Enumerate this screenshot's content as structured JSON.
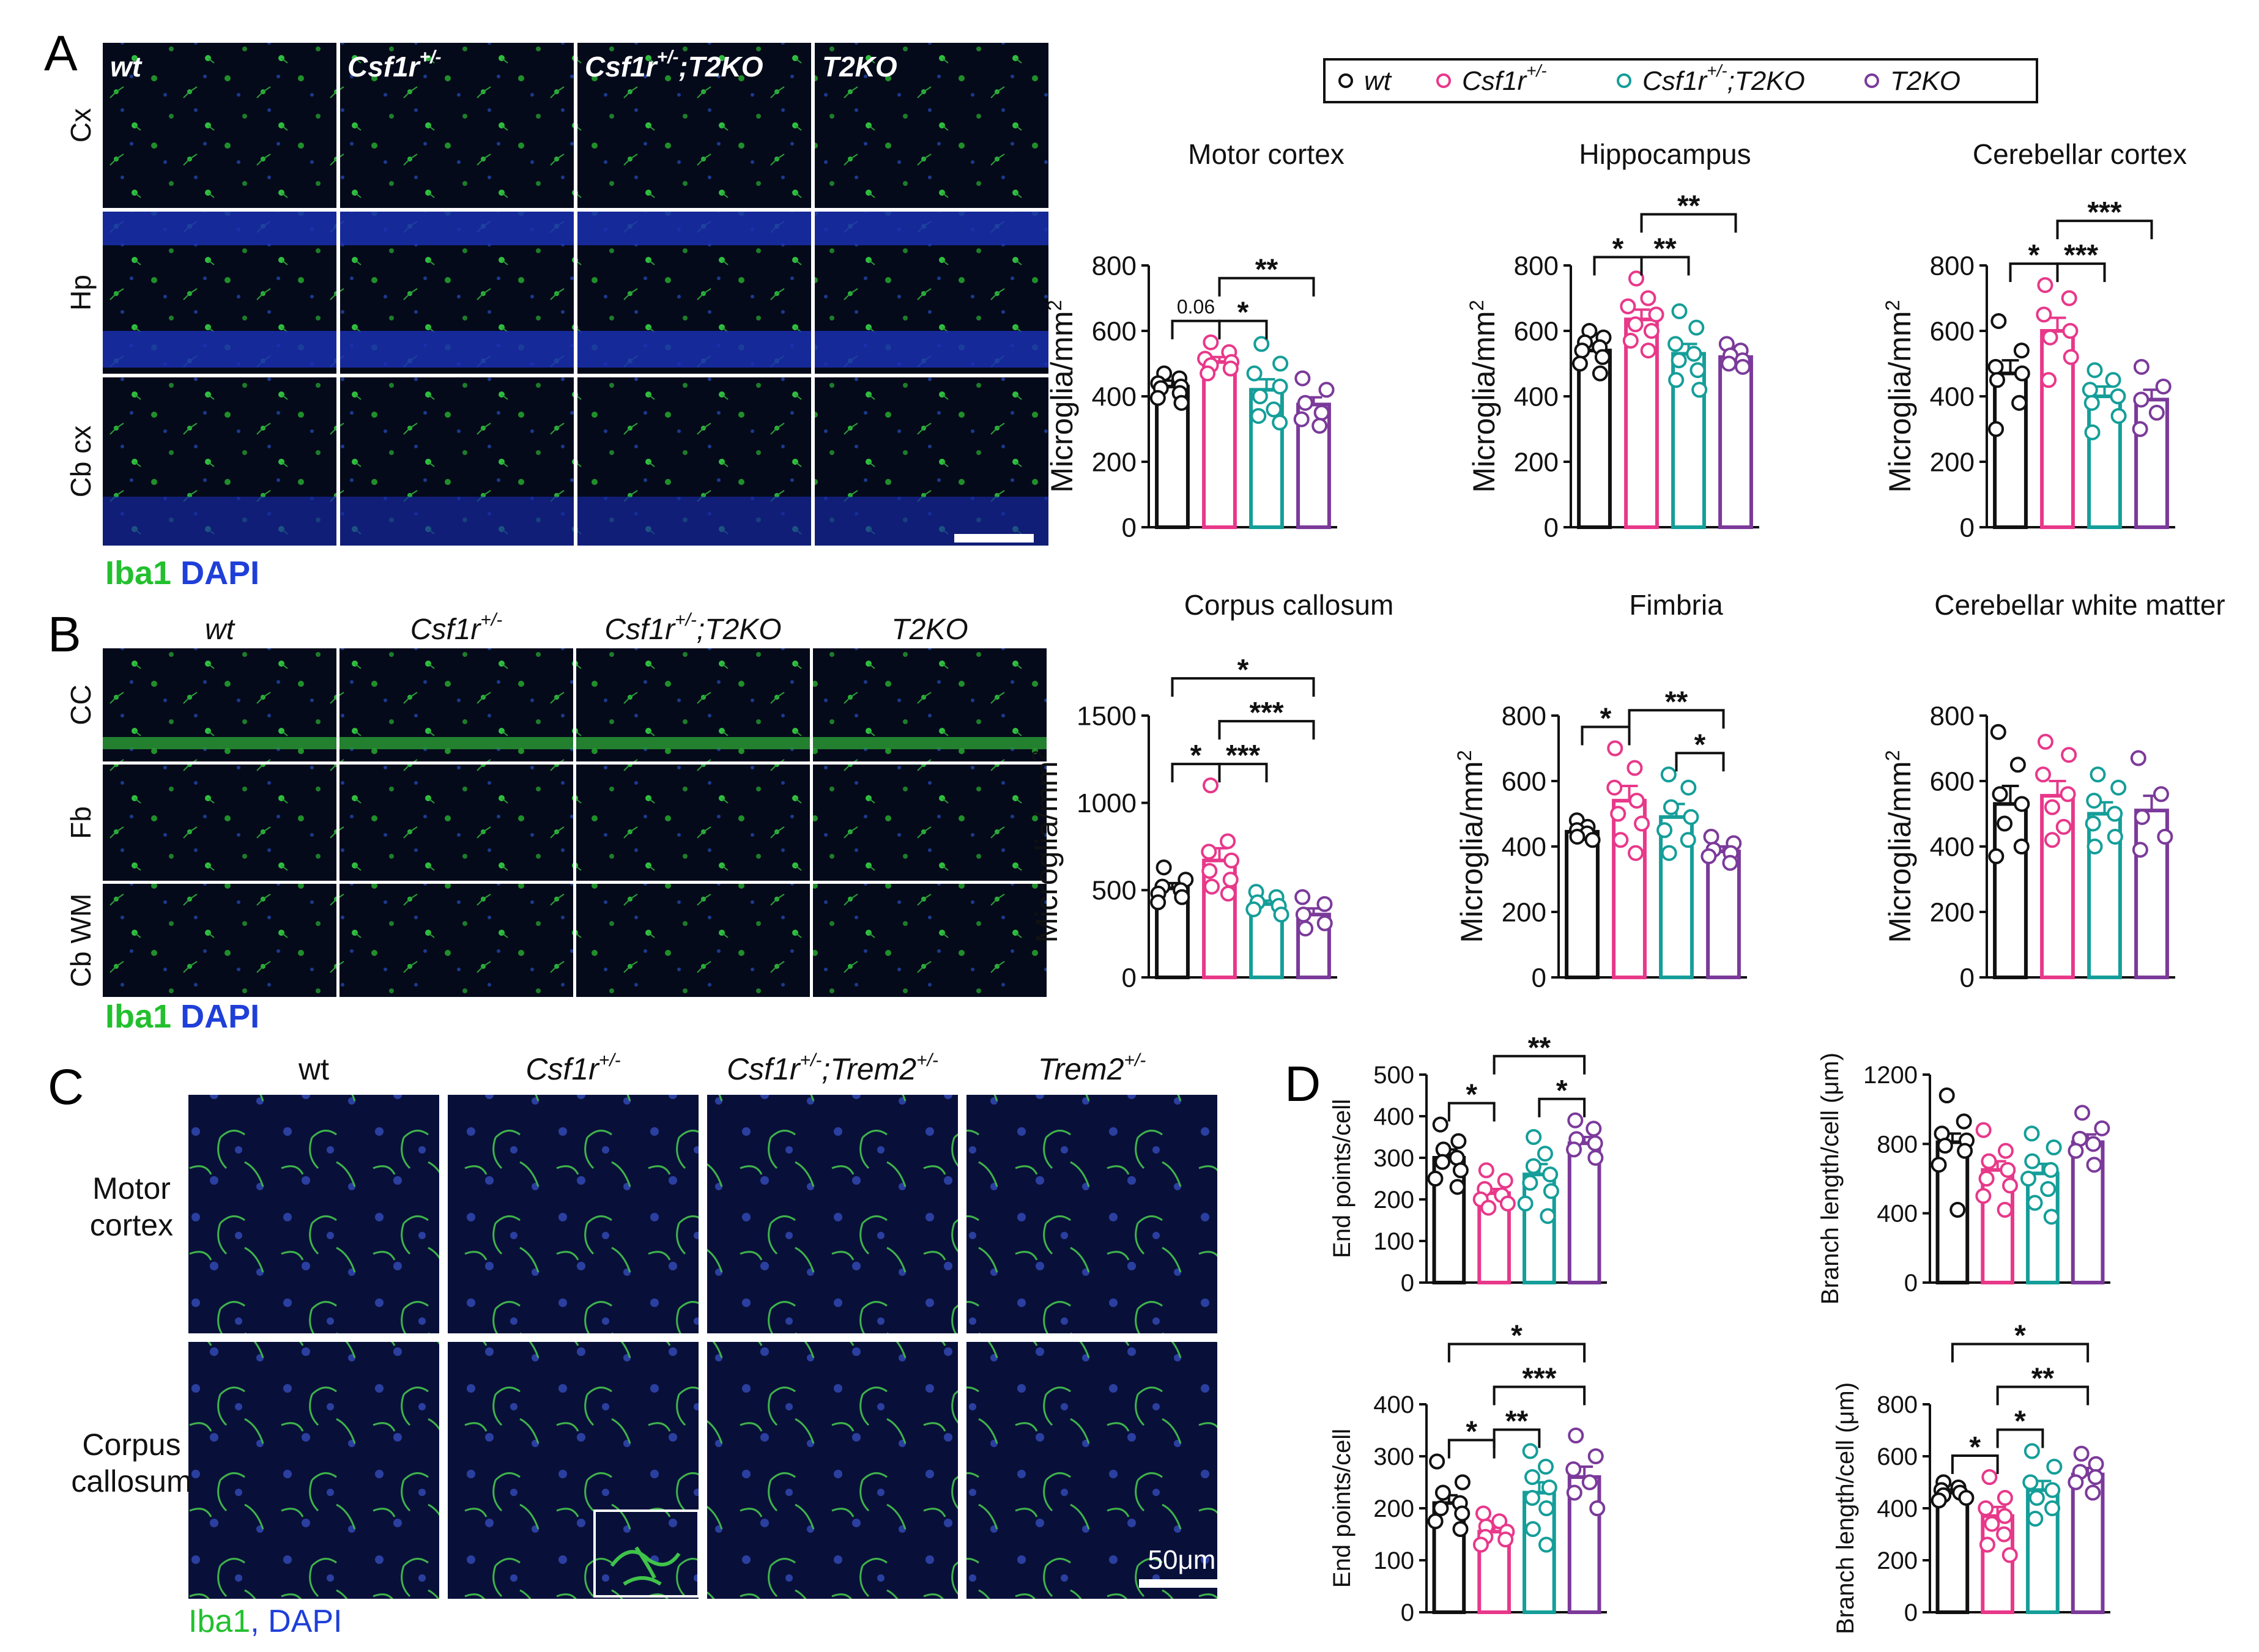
{
  "legend": [
    {
      "label": "wt",
      "color": "#111111"
    },
    {
      "label": "Csf1r",
      "sup": "+/-",
      "color": "#e8388a"
    },
    {
      "label": "Csf1r",
      "sup": "+/-",
      "label2": ";T2KO",
      "color": "#159e99"
    },
    {
      "label": "T2KO",
      "color": "#7b3a9a"
    }
  ],
  "panel_letters": [
    "A",
    "B",
    "C",
    "D"
  ],
  "micro_a": {
    "columns": [
      {
        "t": "wt"
      },
      {
        "t": "Csf1r",
        "sup": "+/-"
      },
      {
        "t": "Csf1r",
        "sup": "+/-",
        "t2": ";T2KO"
      },
      {
        "t": "T2KO"
      }
    ],
    "rows": [
      "Cx",
      "Hp",
      "Cb cx"
    ],
    "stain": [
      "Iba1",
      "DAPI"
    ]
  },
  "micro_b": {
    "columns": [
      {
        "t": "wt"
      },
      {
        "t": "Csf1r",
        "sup": "+/-"
      },
      {
        "t": "Csf1r",
        "sup": "+/-",
        "t2": ";T2KO"
      },
      {
        "t": "T2KO"
      }
    ],
    "rows": [
      "CC",
      "Fb",
      "Cb WM"
    ],
    "stain": [
      "Iba1",
      "DAPI"
    ]
  },
  "micro_c": {
    "columns": [
      {
        "t": "wt"
      },
      {
        "t": "Csf1r",
        "sup": "+/-"
      },
      {
        "t": "Csf1r",
        "sup": "+/-",
        "t2": ";Trem2",
        "sup2": "+/-"
      },
      {
        "t": "Trem2",
        "sup": "+/-"
      }
    ],
    "rows": [
      [
        "Motor",
        "cortex"
      ],
      [
        "Corpus",
        "callosum"
      ]
    ],
    "stain": [
      "Iba1",
      "DAPI"
    ],
    "scalebar": "50μm"
  },
  "chart_data": [
    {
      "id": "A1",
      "type": "bar",
      "title": "Motor cortex",
      "ylabel": "Microglia/mm",
      "ylabel_sup": "2",
      "ylim": [
        0,
        800
      ],
      "ticks": [
        0,
        200,
        400,
        600,
        800
      ],
      "series": [
        {
          "mean": 430,
          "sem": 18,
          "points": [
            470,
            455,
            440,
            430,
            425,
            410,
            395,
            380
          ]
        },
        {
          "mean": 505,
          "sem": 15,
          "points": [
            565,
            535,
            515,
            505,
            495,
            485,
            470
          ]
        },
        {
          "mean": 420,
          "sem": 32,
          "points": [
            560,
            500,
            470,
            430,
            400,
            360,
            340,
            320
          ]
        },
        {
          "mean": 375,
          "sem": 22,
          "points": [
            455,
            420,
            380,
            350,
            330,
            310
          ]
        }
      ],
      "sig": [
        {
          "from": 0,
          "to": 1,
          "label": "0.06"
        },
        {
          "from": 1,
          "to": 2,
          "label": "*"
        },
        {
          "from": 1,
          "to": 3,
          "label": "**"
        }
      ]
    },
    {
      "id": "A2",
      "type": "bar",
      "title": "Hippocampus",
      "ylabel": "Microglia/mm",
      "ylabel_sup": "2",
      "ylim": [
        0,
        800
      ],
      "ticks": [
        0,
        200,
        400,
        600,
        800
      ],
      "series": [
        {
          "mean": 540,
          "sem": 20,
          "points": [
            600,
            580,
            565,
            550,
            540,
            520,
            500,
            470
          ]
        },
        {
          "mean": 635,
          "sem": 30,
          "points": [
            760,
            700,
            675,
            650,
            620,
            600,
            570,
            540
          ]
        },
        {
          "mean": 530,
          "sem": 30,
          "points": [
            660,
            610,
            560,
            530,
            510,
            480,
            450,
            420
          ]
        },
        {
          "mean": 520,
          "sem": 15,
          "points": [
            560,
            540,
            525,
            510,
            500,
            490
          ]
        }
      ],
      "sig": [
        {
          "from": 0,
          "to": 1,
          "label": "*"
        },
        {
          "from": 1,
          "to": 2,
          "label": "**"
        },
        {
          "from": 1,
          "to": 3,
          "label": "**"
        }
      ]
    },
    {
      "id": "A3",
      "type": "bar",
      "title": "Cerebellar cortex",
      "ylabel": "Microglia/mm",
      "ylabel_sup": "2",
      "ylim": [
        0,
        800
      ],
      "ticks": [
        0,
        200,
        400,
        600,
        800
      ],
      "series": [
        {
          "mean": 470,
          "sem": 40,
          "points": [
            630,
            540,
            490,
            470,
            450,
            380,
            300
          ]
        },
        {
          "mean": 600,
          "sem": 40,
          "points": [
            740,
            700,
            650,
            600,
            580,
            520,
            450
          ]
        },
        {
          "mean": 400,
          "sem": 30,
          "points": [
            480,
            450,
            420,
            400,
            380,
            340,
            290
          ]
        },
        {
          "mean": 390,
          "sem": 30,
          "points": [
            490,
            430,
            390,
            350,
            300
          ]
        }
      ],
      "sig": [
        {
          "from": 0,
          "to": 1,
          "label": "*"
        },
        {
          "from": 1,
          "to": 2,
          "label": "***"
        },
        {
          "from": 1,
          "to": 3,
          "label": "***"
        }
      ]
    },
    {
      "id": "B1",
      "type": "bar",
      "title": "Corpus callosum",
      "ylabel": "Microglia/mm",
      "ylabel_sup": "2",
      "ylim": [
        0,
        1500
      ],
      "ticks": [
        0,
        500,
        1000,
        1500
      ],
      "series": [
        {
          "mean": 510,
          "sem": 30,
          "points": [
            630,
            560,
            520,
            500,
            480,
            460,
            430
          ]
        },
        {
          "mean": 670,
          "sem": 70,
          "points": [
            1100,
            780,
            720,
            670,
            610,
            560,
            520,
            480
          ]
        },
        {
          "mean": 420,
          "sem": 20,
          "points": [
            490,
            460,
            430,
            410,
            390,
            360
          ]
        },
        {
          "mean": 360,
          "sem": 35,
          "points": [
            460,
            420,
            360,
            310,
            280
          ]
        }
      ],
      "sig": [
        {
          "from": 0,
          "to": 1,
          "label": "*"
        },
        {
          "from": 1,
          "to": 2,
          "label": "***"
        },
        {
          "from": 1,
          "to": 3,
          "label": "***"
        },
        {
          "from": 0,
          "to": 3,
          "label": "*"
        }
      ]
    },
    {
      "id": "B2",
      "type": "bar",
      "title": "Fimbria",
      "ylabel": "Microglia/mm",
      "ylabel_sup": "2",
      "ylim": [
        0,
        800
      ],
      "ticks": [
        0,
        200,
        400,
        600,
        800
      ],
      "series": [
        {
          "mean": 445,
          "sem": 12,
          "points": [
            480,
            460,
            450,
            440,
            430,
            420
          ]
        },
        {
          "mean": 540,
          "sem": 45,
          "points": [
            700,
            640,
            580,
            540,
            500,
            470,
            420,
            380
          ]
        },
        {
          "mean": 490,
          "sem": 40,
          "points": [
            620,
            580,
            520,
            490,
            450,
            420,
            380
          ]
        },
        {
          "mean": 385,
          "sem": 15,
          "points": [
            430,
            410,
            390,
            380,
            370,
            350
          ]
        }
      ],
      "sig": [
        {
          "from": 0,
          "to": 1,
          "label": "*"
        },
        {
          "from": 2,
          "to": 3,
          "label": "*"
        },
        {
          "from": 1,
          "to": 3,
          "label": "**"
        }
      ]
    },
    {
      "id": "B3",
      "type": "bar",
      "title": "Cerebellar white matter",
      "ylabel": "Microglia/mm",
      "ylabel_sup": "2",
      "ylim": [
        0,
        800
      ],
      "ticks": [
        0,
        200,
        400,
        600,
        800
      ],
      "series": [
        {
          "mean": 530,
          "sem": 55,
          "points": [
            750,
            650,
            560,
            530,
            470,
            400,
            370
          ]
        },
        {
          "mean": 555,
          "sem": 45,
          "points": [
            720,
            680,
            620,
            560,
            520,
            460,
            420
          ]
        },
        {
          "mean": 500,
          "sem": 35,
          "points": [
            620,
            580,
            540,
            500,
            470,
            430,
            400
          ]
        },
        {
          "mean": 510,
          "sem": 45,
          "points": [
            670,
            560,
            490,
            430,
            390
          ]
        }
      ],
      "sig": []
    },
    {
      "id": "D1",
      "type": "bar",
      "title": "",
      "ylabel": "End points/cell",
      "ylim": [
        0,
        500
      ],
      "ticks": [
        0,
        100,
        200,
        300,
        400,
        500
      ],
      "series": [
        {
          "mean": 300,
          "sem": 20,
          "points": [
            380,
            340,
            320,
            300,
            290,
            270,
            250,
            230
          ]
        },
        {
          "mean": 215,
          "sem": 10,
          "points": [
            270,
            245,
            225,
            210,
            200,
            190,
            180
          ]
        },
        {
          "mean": 260,
          "sem": 25,
          "points": [
            350,
            310,
            280,
            260,
            240,
            220,
            190,
            160
          ]
        },
        {
          "mean": 335,
          "sem": 15,
          "points": [
            390,
            370,
            345,
            335,
            320,
            300
          ]
        }
      ],
      "sig": [
        {
          "from": 0,
          "to": 1,
          "label": "*"
        },
        {
          "from": 2,
          "to": 3,
          "label": "*"
        },
        {
          "from": 1,
          "to": 3,
          "label": "**"
        }
      ]
    },
    {
      "id": "D2",
      "type": "bar",
      "title": "",
      "ylabel": "Branch length/cell (μm)",
      "ylim": [
        0,
        1200
      ],
      "ticks": [
        0,
        400,
        800,
        1200
      ],
      "series": [
        {
          "mean": 810,
          "sem": 50,
          "points": [
            1080,
            930,
            860,
            820,
            790,
            760,
            680,
            420
          ]
        },
        {
          "mean": 650,
          "sem": 50,
          "points": [
            880,
            760,
            700,
            650,
            600,
            560,
            500,
            420
          ]
        },
        {
          "mean": 630,
          "sem": 55,
          "points": [
            860,
            780,
            700,
            650,
            600,
            540,
            460,
            380
          ]
        },
        {
          "mean": 810,
          "sem": 45,
          "points": [
            980,
            890,
            830,
            800,
            760,
            680
          ]
        }
      ],
      "sig": []
    },
    {
      "id": "D3",
      "type": "bar",
      "title": "",
      "ylabel": "End points/cell",
      "ylim": [
        0,
        400
      ],
      "ticks": [
        0,
        100,
        200,
        300,
        400
      ],
      "series": [
        {
          "mean": 210,
          "sem": 15,
          "points": [
            290,
            250,
            230,
            210,
            200,
            190,
            175,
            160
          ]
        },
        {
          "mean": 155,
          "sem": 8,
          "points": [
            190,
            175,
            165,
            155,
            145,
            140,
            130
          ]
        },
        {
          "mean": 230,
          "sem": 20,
          "points": [
            310,
            280,
            260,
            240,
            220,
            200,
            160,
            130
          ]
        },
        {
          "mean": 260,
          "sem": 20,
          "points": [
            340,
            300,
            275,
            250,
            230,
            200
          ]
        }
      ],
      "sig": [
        {
          "from": 0,
          "to": 1,
          "label": "*"
        },
        {
          "from": 1,
          "to": 2,
          "label": "**"
        },
        {
          "from": 1,
          "to": 3,
          "label": "***"
        },
        {
          "from": 0,
          "to": 3,
          "label": "*"
        }
      ]
    },
    {
      "id": "D4",
      "type": "bar",
      "title": "",
      "ylabel": "Branch length/cell (μm)",
      "ylim": [
        0,
        800
      ],
      "ticks": [
        0,
        200,
        400,
        600,
        800
      ],
      "series": [
        {
          "mean": 460,
          "sem": 12,
          "points": [
            500,
            480,
            470,
            460,
            450,
            440,
            430
          ]
        },
        {
          "mean": 370,
          "sem": 35,
          "points": [
            520,
            440,
            400,
            370,
            340,
            300,
            260,
            220
          ]
        },
        {
          "mean": 470,
          "sem": 35,
          "points": [
            620,
            560,
            500,
            470,
            440,
            400,
            360
          ]
        },
        {
          "mean": 530,
          "sem": 25,
          "points": [
            610,
            570,
            540,
            520,
            500,
            460
          ]
        }
      ],
      "sig": [
        {
          "from": 0,
          "to": 1,
          "label": "*"
        },
        {
          "from": 1,
          "to": 2,
          "label": "*"
        },
        {
          "from": 1,
          "to": 3,
          "label": "**"
        },
        {
          "from": 0,
          "to": 3,
          "label": "*"
        }
      ]
    }
  ]
}
